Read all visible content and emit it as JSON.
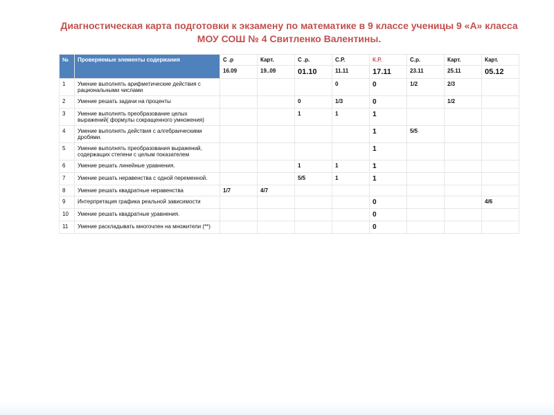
{
  "title": "Диагностическая карта подготовки к экзамену по математике в 9 классе ученицы 9 «А» класса МОУ СОШ № 4 Свитленко Валентины.",
  "header": {
    "num": "№",
    "desc": "Проверяемые элементы содержания",
    "types": [
      "С .р",
      "Карт.",
      "С .р.",
      "С.Р.",
      "К.Р.",
      "С.р.",
      "Карт.",
      "Карт."
    ],
    "dates": [
      "16.09",
      "19..09",
      "01.10",
      "11.11",
      "17.11",
      "23.11",
      "25.11",
      "05.12"
    ]
  },
  "rows": [
    {
      "n": "1",
      "desc": "Умение выполнять арифметические действия с рациональными числами",
      "cells": [
        "",
        "",
        "",
        "0",
        "0",
        "1/2",
        "2/3",
        ""
      ]
    },
    {
      "n": "2",
      "desc": "Умение решать задачи на проценты",
      "cells": [
        "",
        "",
        "0",
        "1/3",
        "0",
        "",
        "1/2",
        ""
      ]
    },
    {
      "n": "3",
      "desc": "Умение выполнять преобразование целых выражений( формулы сокращенного умножения)",
      "cells": [
        "",
        "",
        "1",
        "1",
        "1",
        "",
        "",
        ""
      ]
    },
    {
      "n": "4",
      "desc": "Умение выполнять действия с алгебраическими дробями.",
      "cells": [
        "",
        "",
        "",
        "",
        "1",
        "5/5",
        "",
        ""
      ]
    },
    {
      "n": "5",
      "desc": "Умение выполнять преобразования выражений, содержащих степени с целым показателем",
      "cells": [
        "",
        "",
        "",
        "",
        "1",
        "",
        "",
        ""
      ]
    },
    {
      "n": "6",
      "desc": "Умение решать линейные уравнения.",
      "cells": [
        "",
        "",
        "1",
        "1",
        "1",
        "",
        "",
        ""
      ]
    },
    {
      "n": "7",
      "desc": "Умение решать неравенства с одной переменной.",
      "cells": [
        "",
        "",
        "5/5",
        "1",
        "1",
        "",
        "",
        ""
      ]
    },
    {
      "n": "8",
      "desc": "Умение решать квадратные неравенства",
      "cells": [
        "1/7",
        "4/7",
        "",
        "",
        "",
        "",
        "",
        ""
      ]
    },
    {
      "n": "9",
      "desc": "Интерпретация графика реальной зависимости",
      "cells": [
        "",
        "",
        "",
        "",
        "0",
        "",
        "",
        "4/6"
      ]
    },
    {
      "n": "10",
      "desc": "Умение решать квадратные уравнения.",
      "cells": [
        "",
        "",
        "",
        "",
        "0",
        "",
        "",
        ""
      ]
    },
    {
      "n": "11",
      "desc": "Умение раскладывать многочлен на множители (**)",
      "cells": [
        "",
        "",
        "",
        "",
        "0",
        "",
        "",
        ""
      ]
    }
  ],
  "style": {
    "header_bg": "#4f81bd",
    "header_fg": "#ffffff",
    "title_color": "#c0504d",
    "kr_color": "#c0504d",
    "border_color": "#e6e6e6",
    "date_big_cols": [
      2,
      4,
      7
    ],
    "bold_col_index": 4
  }
}
